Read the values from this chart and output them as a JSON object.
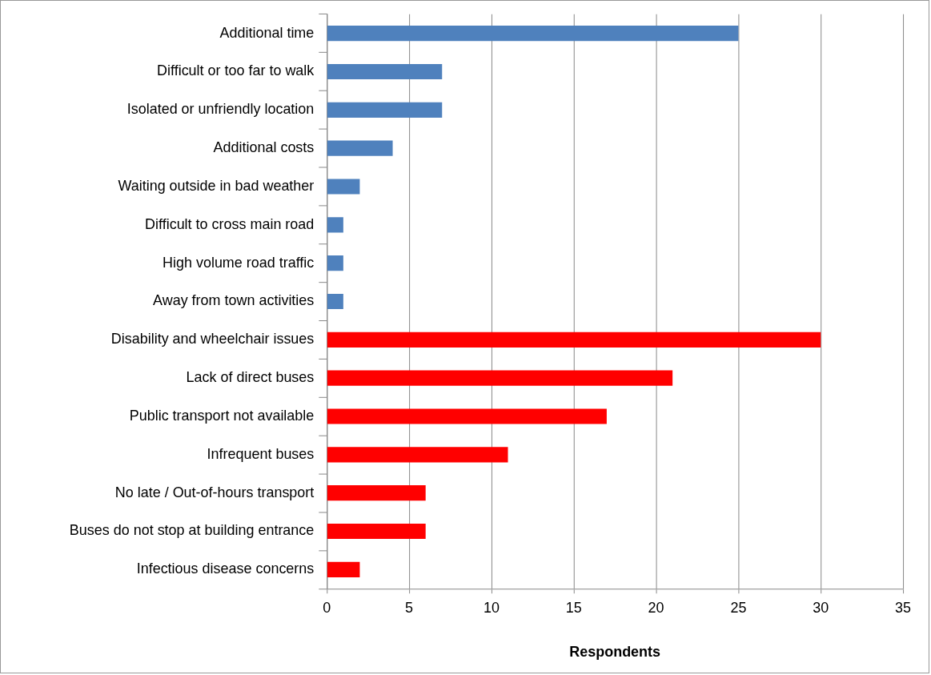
{
  "chart_data": {
    "type": "bar",
    "orientation": "horizontal",
    "xlabel": "Respondents",
    "categories": [
      "Additional time",
      "Difficult or too far to walk",
      "Isolated or unfriendly location",
      "Additional costs",
      "Waiting outside in bad weather",
      "Difficult to cross main road",
      "High volume road traffic",
      "Away from town activities",
      "Disability and wheelchair issues",
      "Lack of direct buses",
      "Public transport not available",
      "Infrequent buses",
      "No late / Out-of-hours transport",
      "Buses do not stop at building entrance",
      "Infectious disease concerns"
    ],
    "values": [
      25,
      7,
      7,
      4,
      2,
      1,
      1,
      1,
      30,
      21,
      17,
      11,
      6,
      6,
      2
    ],
    "colors": [
      "#4f81bd",
      "#4f81bd",
      "#4f81bd",
      "#4f81bd",
      "#4f81bd",
      "#4f81bd",
      "#4f81bd",
      "#4f81bd",
      "#ff0000",
      "#ff0000",
      "#ff0000",
      "#ff0000",
      "#ff0000",
      "#ff0000",
      "#ff0000"
    ],
    "xlim": [
      0,
      35
    ],
    "xticks": [
      0,
      5,
      10,
      15,
      20,
      25,
      30,
      35
    ],
    "grid": "x",
    "legend": false
  }
}
